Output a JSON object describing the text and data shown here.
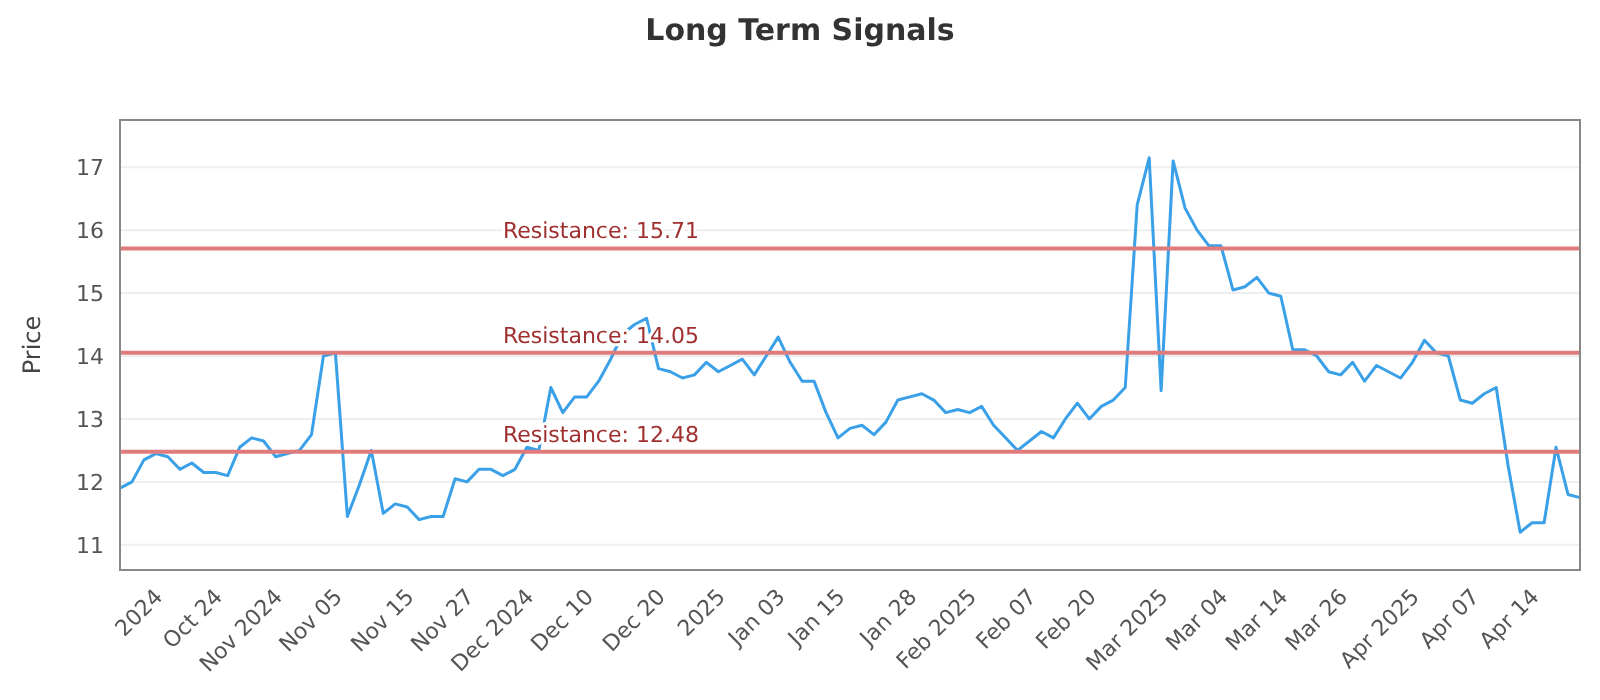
{
  "chart_data": {
    "type": "line",
    "title": "Long Term Signals",
    "ylabel": "Price",
    "categories": [
      null,
      null,
      null,
      "2024",
      null,
      null,
      null,
      null,
      "Oct 24",
      null,
      null,
      null,
      null,
      "Nov 2024",
      null,
      null,
      null,
      null,
      "Nov 05",
      null,
      null,
      null,
      null,
      null,
      "Nov 15",
      null,
      null,
      null,
      null,
      "Nov 27",
      null,
      null,
      null,
      null,
      "Dec 2024",
      null,
      null,
      null,
      null,
      "Dec 10",
      null,
      null,
      null,
      null,
      null,
      "Dec 20",
      null,
      null,
      null,
      null,
      "2025",
      null,
      null,
      null,
      null,
      "Jan 03",
      null,
      null,
      null,
      null,
      "Jan 15",
      null,
      null,
      null,
      null,
      null,
      "Jan 28",
      null,
      null,
      null,
      null,
      "Feb 2025",
      null,
      null,
      null,
      null,
      "Feb 07",
      null,
      null,
      null,
      null,
      "Feb 20",
      null,
      null,
      null,
      null,
      null,
      "Mar 2025",
      null,
      null,
      null,
      null,
      "Mar 04",
      null,
      null,
      null,
      null,
      "Mar 14",
      null,
      null,
      null,
      null,
      "Mar 26",
      null,
      null,
      null,
      null,
      null,
      "Apr 2025",
      null,
      null,
      null,
      null,
      "Apr 07",
      null,
      null,
      null,
      null,
      "Apr 14",
      null,
      null,
      null,
      null
    ],
    "series": [
      {
        "color": "#3aa0e8",
        "values": [
          11.9,
          12.0,
          12.35,
          12.45,
          12.4,
          12.2,
          12.3,
          12.15,
          12.15,
          12.1,
          12.55,
          12.7,
          12.65,
          12.4,
          12.45,
          12.5,
          12.75,
          14.0,
          14.05,
          11.45,
          11.95,
          12.5,
          11.5,
          11.65,
          11.6,
          11.4,
          11.45,
          11.45,
          12.05,
          12.0,
          12.2,
          12.2,
          12.1,
          12.2,
          12.55,
          12.5,
          13.5,
          13.1,
          13.35,
          13.35,
          13.6,
          13.95,
          14.35,
          14.5,
          14.6,
          13.8,
          13.75,
          13.65,
          13.7,
          13.9,
          13.75,
          13.85,
          13.95,
          13.7,
          14.0,
          14.3,
          13.9,
          13.6,
          13.6,
          13.1,
          12.7,
          12.85,
          12.9,
          12.75,
          12.95,
          13.3,
          13.35,
          13.4,
          13.3,
          13.1,
          13.15,
          13.1,
          13.2,
          12.9,
          12.7,
          12.5,
          12.65,
          12.8,
          12.7,
          13.0,
          13.25,
          13.0,
          13.2,
          13.3,
          13.5,
          16.4,
          17.15,
          13.45,
          17.1,
          16.35,
          16.0,
          15.75,
          15.75,
          15.05,
          15.1,
          15.25,
          15.0,
          14.95,
          14.1,
          14.1,
          14.0,
          13.75,
          13.7,
          13.9,
          13.6,
          13.85,
          13.75,
          13.65,
          13.9,
          14.25,
          14.05,
          14.0,
          13.3,
          13.25,
          13.4,
          13.5,
          12.25,
          11.2,
          11.35,
          11.35,
          12.55,
          11.8,
          11.75
        ]
      }
    ],
    "ylim": [
      10.6,
      17.75
    ],
    "yticks": [
      11,
      12,
      13,
      14,
      15,
      16,
      17
    ],
    "grid": "y",
    "marker": "none",
    "line_style": "solid",
    "ref_lines": [
      {
        "axis": "y",
        "value": 15.71,
        "label": "Resistance: 15.71",
        "color": "#e07b7b"
      },
      {
        "axis": "y",
        "value": 14.05,
        "label": "Resistance: 14.05",
        "color": "#e07b7b"
      },
      {
        "axis": "y",
        "value": 12.48,
        "label": "Resistance: 12.48",
        "color": "#e07b7b"
      }
    ]
  }
}
